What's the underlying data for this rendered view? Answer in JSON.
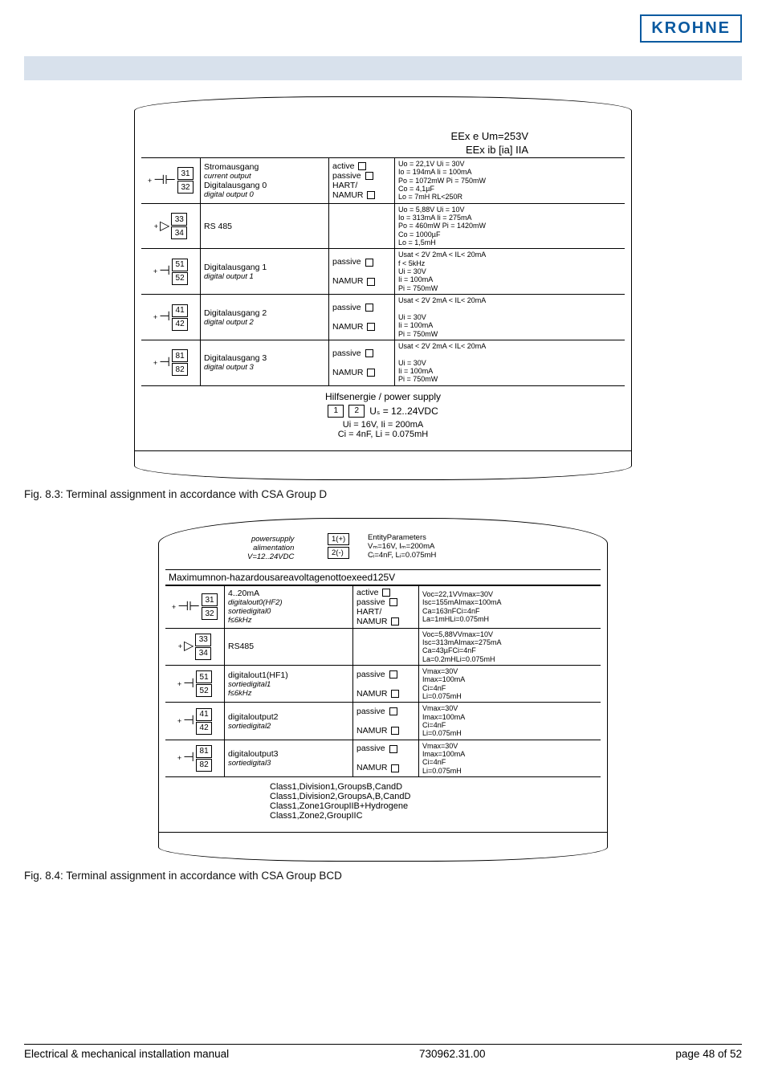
{
  "logo": "KROHNE",
  "footer": {
    "left": "Electrical & mechanical installation manual",
    "mid": "730962.31.00",
    "right": "page 48 of 52"
  },
  "caption1": "Fig. 8.3: Terminal assignment in accordance with CSA Group D",
  "caption2": "Fig. 8.4: Terminal assignment in accordance with CSA Group BCD",
  "fig1": {
    "header1": "EEx e Um=253V",
    "header2": "EEx ib [ia] IIA",
    "rows": [
      {
        "t1": "31",
        "t2": "32",
        "sign": "+",
        "glyph": "⊣⊢",
        "name": "Stromausgang",
        "name_it": "current output",
        "name2": "Digitalausgang 0",
        "name2_it": "digital output 0",
        "mode": "active ☐\npassive ☐\nHART/\nNAMUR ☐",
        "spec": "Uo = 22,1V    Ui = 30V\nIo = 194mA    Ii = 100mA\nPo = 1072mW  Pi = 750mW\nCo = 4,1µF\nLo = 7mH     RL<250R"
      },
      {
        "t1": "33",
        "t2": "34",
        "sign": "+",
        "glyph": "▷",
        "name": "RS 485",
        "name_it": "",
        "name2": "",
        "name2_it": "",
        "mode": "",
        "spec": "Uo = 5,88V    Ui = 10V\nIo = 313mA    Ii = 275mA\nPo = 460mW   Pi = 1420mW\nCo = 1000µF\nLo = 1,5mH"
      },
      {
        "t1": "51",
        "t2": "52",
        "sign": "+",
        "glyph": "⊣",
        "name": "Digitalausgang 1",
        "name_it": "digital output 1",
        "name2": "",
        "name2_it": "",
        "mode": "passive ☐\n\nNAMUR ☐",
        "spec": "Usat < 2V   2mA < IL< 20mA\nf < 5kHz\nUi = 30V\nIi = 100mA\nPi = 750mW"
      },
      {
        "t1": "41",
        "t2": "42",
        "sign": "+",
        "glyph": "⊣",
        "name": "Digitalausgang 2",
        "name_it": "digital output 2",
        "name2": "",
        "name2_it": "",
        "mode": "passive ☐\n\nNAMUR ☐",
        "spec": "Usat < 2V   2mA < IL< 20mA\n\nUi = 30V\nIi = 100mA\nPi = 750mW"
      },
      {
        "t1": "81",
        "t2": "82",
        "sign": "+",
        "glyph": "⊣",
        "name": "Digitalausgang 3",
        "name_it": "digital output 3",
        "name2": "",
        "name2_it": "",
        "mode": "passive ☐\n\nNAMUR ☐",
        "spec": "Usat < 2V   2mA < IL< 20mA\n\nUi = 30V\nIi = 100mA\nPi = 750mW"
      }
    ],
    "supply_title": "Hilfsenergie / power supply",
    "supply_box1": "1",
    "supply_box2": "2",
    "supply_l1": "Uₛ = 12..24VDC",
    "supply_l2": "Ui = 16V, Ii = 200mA",
    "supply_l3": "Ci = 4nF, Li = 0.075mH"
  },
  "fig2": {
    "arc_left_title": "powersupply",
    "arc_left_it": "alimentation",
    "arc_left_v": "V=12..24VDC",
    "arc_box1": "1(+)",
    "arc_box2": "2(-)",
    "arc_right_title": "EntityParameters",
    "arc_right_l1": "Vₘ=16V, Iₘ=200mA",
    "arc_right_l2": "Cᵢ=4nF, Lᵢ=0.075mH",
    "maxbar": "Maximumnon-hazardousareavoltagenottoexeed125V",
    "rows": [
      {
        "t1": "31",
        "t2": "32",
        "sign": "+",
        "glyph": "⊣⊢",
        "name": "4..20mA",
        "name_it": "digitalout0(HF2)\nsortiedigital0\nf≤6kHz",
        "mode": "active ☐\npassive ☐\nHART/\nNAMUR ☐",
        "spec": "Voc=22,1VVmax=30V\nIsc=155mAImax=100mA\nCa=163nFCi=4nF\nLa=1mHLi=0.075mH"
      },
      {
        "t1": "33",
        "t2": "34",
        "sign": "+",
        "glyph": "▷",
        "name": "RS485",
        "name_it": "",
        "mode": "",
        "spec": "Voc=5,88VVmax=10V\nIsc=313mAImax=275mA\nCa=43µFCi=4nF\nLa=0.2mHLi=0.075mH"
      },
      {
        "t1": "51",
        "t2": "52",
        "sign": "+",
        "glyph": "⊣",
        "name": "digitalout1(HF1)",
        "name_it": "sortiedigital1\nf≤6kHz",
        "mode": "passive ☐\n\nNAMUR ☐",
        "spec": "Vmax=30V\nImax=100mA\nCi=4nF\nLi=0.075mH"
      },
      {
        "t1": "41",
        "t2": "42",
        "sign": "+",
        "glyph": "⊣",
        "name": "digitaloutput2",
        "name_it": "sortiedigital2",
        "mode": "passive ☐\n\nNAMUR ☐",
        "spec": "Vmax=30V\nImax=100mA\nCi=4nF\nLi=0.075mH"
      },
      {
        "t1": "81",
        "t2": "82",
        "sign": "+",
        "glyph": "⊣",
        "name": "digitaloutput3",
        "name_it": "sortiedigital3",
        "mode": "passive ☐\n\nNAMUR ☐",
        "spec": "Vmax=30V\nImax=100mA\nCi=4nF\nLi=0.075mH"
      }
    ],
    "class_l1": "Class1,Division1,GroupsB,CandD",
    "class_l2": "Class1,Division2,GroupsA,B,CandD",
    "class_l3": "Class1,Zone1GroupIIB+Hydrogene",
    "class_l4": "Class1,Zone2,GroupIIC"
  }
}
